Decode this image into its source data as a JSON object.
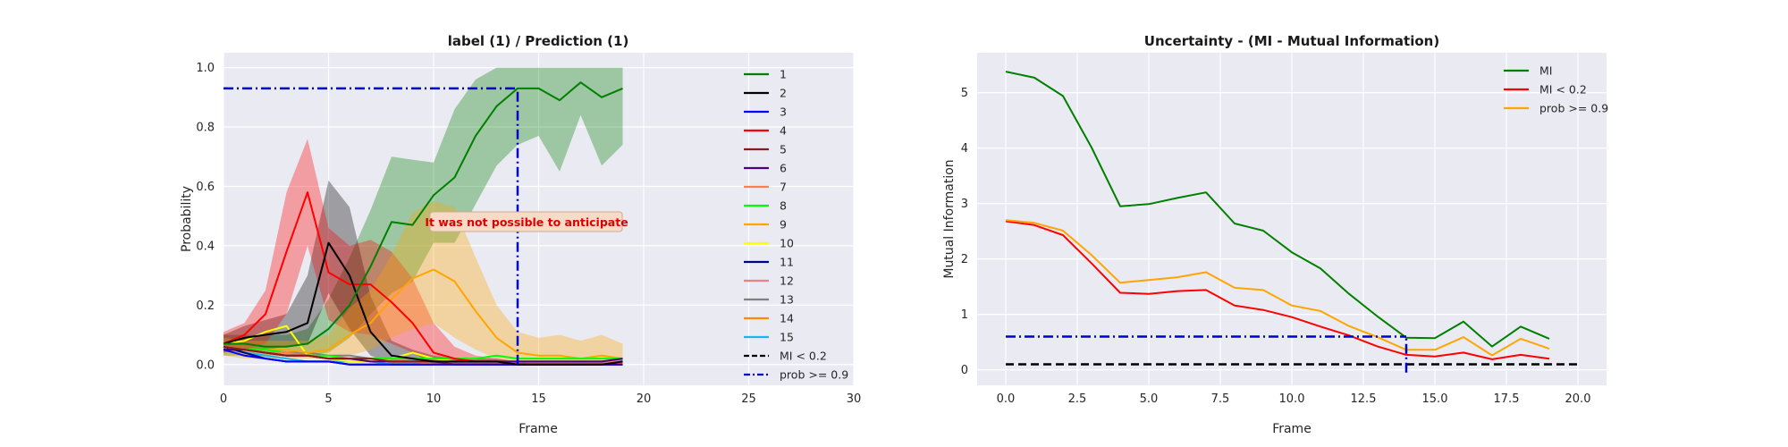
{
  "chart_data": [
    {
      "type": "line",
      "title": "label (1) / Prediction (1)",
      "xlabel": "Frame",
      "ylabel": "Probability",
      "xlim": [
        0,
        30
      ],
      "ylim": [
        -0.07,
        1.05
      ],
      "xticks": [
        0,
        5,
        10,
        15,
        20,
        25,
        30
      ],
      "yticks": [
        0.0,
        0.2,
        0.4,
        0.6,
        0.8,
        1.0
      ],
      "xtick_labels": [
        "0",
        "5",
        "10",
        "15",
        "20",
        "25",
        "30"
      ],
      "ytick_labels": [
        "0.0",
        "0.2",
        "0.4",
        "0.6",
        "0.8",
        "1.0"
      ],
      "grid": true,
      "legend_position": "right",
      "x": [
        0,
        1,
        2,
        3,
        4,
        5,
        6,
        7,
        8,
        9,
        10,
        11,
        12,
        13,
        14,
        15,
        16,
        17,
        18,
        19
      ],
      "series": [
        {
          "name": "1",
          "color": "#008000",
          "values": [
            0.07,
            0.07,
            0.06,
            0.06,
            0.07,
            0.12,
            0.2,
            0.33,
            0.48,
            0.47,
            0.57,
            0.63,
            0.77,
            0.87,
            0.93,
            0.93,
            0.89,
            0.95,
            0.9,
            0.93
          ],
          "band_lower": [
            0.03,
            0.03,
            0.03,
            0.03,
            0.03,
            0.04,
            0.09,
            0.17,
            0.24,
            0.28,
            0.41,
            0.41,
            0.54,
            0.67,
            0.74,
            0.77,
            0.65,
            0.84,
            0.67,
            0.74
          ],
          "band_upper": [
            0.1,
            0.1,
            0.1,
            0.1,
            0.12,
            0.22,
            0.36,
            0.52,
            0.7,
            0.69,
            0.68,
            0.86,
            0.96,
            1.0,
            1.0,
            1.0,
            1.0,
            1.0,
            1.0,
            1.0
          ]
        },
        {
          "name": "2",
          "color": "#000000",
          "values": [
            0.07,
            0.09,
            0.1,
            0.11,
            0.14,
            0.41,
            0.3,
            0.11,
            0.03,
            0.02,
            0.01,
            0.01,
            0.01,
            0.01,
            0.0,
            0.0,
            0.0,
            0.0,
            0.0,
            0.01
          ],
          "band_lower": [
            0.04,
            0.05,
            0.05,
            0.06,
            0.07,
            0.24,
            0.12,
            0.03,
            0.0,
            0.0,
            0.0,
            0.0,
            0.0,
            0.0,
            0.0,
            0.0,
            0.0,
            0.0,
            0.0,
            0.0
          ],
          "band_upper": [
            0.1,
            0.13,
            0.15,
            0.17,
            0.3,
            0.62,
            0.53,
            0.23,
            0.08,
            0.05,
            0.03,
            0.02,
            0.02,
            0.02,
            0.01,
            0.01,
            0.01,
            0.01,
            0.01,
            0.02
          ]
        },
        {
          "name": "3",
          "color": "#0000ff",
          "values": [
            0.05,
            0.03,
            0.02,
            0.01,
            0.01,
            0.01,
            0.0,
            0.0,
            0.0,
            0.0,
            0.0,
            0.0,
            0.0,
            0.0,
            0.0,
            0.0,
            0.0,
            0.0,
            0.0,
            0.0
          ]
        },
        {
          "name": "4",
          "color": "#ff0000",
          "values": [
            0.07,
            0.1,
            0.17,
            0.38,
            0.58,
            0.31,
            0.27,
            0.27,
            0.21,
            0.14,
            0.04,
            0.02,
            0.01,
            0.01,
            0.0,
            0.0,
            0.0,
            0.0,
            0.0,
            0.0
          ],
          "band_lower": [
            0.04,
            0.05,
            0.07,
            0.17,
            0.4,
            0.15,
            0.11,
            0.1,
            0.07,
            0.04,
            0.0,
            0.0,
            0.0,
            0.0,
            0.0,
            0.0,
            0.0,
            0.0,
            0.0,
            0.0
          ],
          "band_upper": [
            0.11,
            0.14,
            0.25,
            0.58,
            0.76,
            0.46,
            0.4,
            0.42,
            0.38,
            0.29,
            0.14,
            0.06,
            0.03,
            0.02,
            0.01,
            0.01,
            0.01,
            0.01,
            0.01,
            0.01
          ]
        },
        {
          "name": "5",
          "color": "#8b1a1a",
          "values": [
            0.06,
            0.05,
            0.04,
            0.03,
            0.03,
            0.02,
            0.02,
            0.02,
            0.01,
            0.01,
            0.01,
            0.0,
            0.0,
            0.0,
            0.0,
            0.0,
            0.0,
            0.0,
            0.0,
            0.0
          ]
        },
        {
          "name": "6",
          "color": "#4b0082",
          "values": [
            0.05,
            0.05,
            0.04,
            0.03,
            0.03,
            0.02,
            0.02,
            0.01,
            0.01,
            0.01,
            0.01,
            0.01,
            0.01,
            0.01,
            0.01,
            0.01,
            0.01,
            0.01,
            0.01,
            0.02
          ]
        },
        {
          "name": "7",
          "color": "#ff7f50",
          "values": [
            0.06,
            0.05,
            0.04,
            0.04,
            0.03,
            0.02,
            0.02,
            0.01,
            0.01,
            0.01,
            0.0,
            0.0,
            0.0,
            0.0,
            0.0,
            0.0,
            0.0,
            0.0,
            0.0,
            0.0
          ]
        },
        {
          "name": "8",
          "color": "#00ff00",
          "values": [
            0.06,
            0.05,
            0.05,
            0.04,
            0.03,
            0.03,
            0.02,
            0.02,
            0.02,
            0.02,
            0.02,
            0.02,
            0.02,
            0.03,
            0.02,
            0.02,
            0.02,
            0.02,
            0.02,
            0.02
          ]
        },
        {
          "name": "9",
          "color": "#ffa500",
          "values": [
            0.06,
            0.05,
            0.05,
            0.05,
            0.04,
            0.05,
            0.1,
            0.14,
            0.22,
            0.29,
            0.32,
            0.28,
            0.18,
            0.09,
            0.04,
            0.03,
            0.03,
            0.02,
            0.03,
            0.02
          ],
          "band_lower": [
            0.03,
            0.02,
            0.02,
            0.02,
            0.02,
            0.02,
            0.03,
            0.05,
            0.09,
            0.12,
            0.14,
            0.09,
            0.05,
            0.02,
            0.01,
            0.0,
            0.0,
            0.0,
            0.0,
            0.0
          ],
          "band_upper": [
            0.09,
            0.08,
            0.08,
            0.08,
            0.08,
            0.1,
            0.19,
            0.25,
            0.37,
            0.51,
            0.55,
            0.53,
            0.36,
            0.2,
            0.11,
            0.09,
            0.1,
            0.08,
            0.1,
            0.07
          ]
        },
        {
          "name": "10",
          "color": "#ffff00",
          "values": [
            0.07,
            0.08,
            0.11,
            0.13,
            0.03,
            0.02,
            0.01,
            0.01,
            0.02,
            0.04,
            0.02,
            0.01,
            0.01,
            0.01,
            0.0,
            0.0,
            0.0,
            0.0,
            0.0,
            0.0
          ]
        },
        {
          "name": "11",
          "color": "#00008b",
          "values": [
            0.06,
            0.04,
            0.02,
            0.01,
            0.01,
            0.01,
            0.0,
            0.0,
            0.0,
            0.0,
            0.0,
            0.0,
            0.0,
            0.0,
            0.0,
            0.0,
            0.0,
            0.0,
            0.0,
            0.0
          ]
        },
        {
          "name": "12",
          "color": "#f08080",
          "values": [
            0.06,
            0.05,
            0.04,
            0.03,
            0.03,
            0.02,
            0.02,
            0.02,
            0.02,
            0.01,
            0.01,
            0.01,
            0.01,
            0.01,
            0.01,
            0.01,
            0.01,
            0.01,
            0.01,
            0.01
          ]
        },
        {
          "name": "13",
          "color": "#808080",
          "values": [
            0.06,
            0.05,
            0.05,
            0.04,
            0.04,
            0.03,
            0.03,
            0.02,
            0.02,
            0.02,
            0.01,
            0.01,
            0.01,
            0.01,
            0.01,
            0.01,
            0.01,
            0.01,
            0.01,
            0.01
          ]
        },
        {
          "name": "14",
          "color": "#ff8c00",
          "values": [
            0.06,
            0.05,
            0.04,
            0.03,
            0.03,
            0.02,
            0.02,
            0.02,
            0.01,
            0.01,
            0.01,
            0.01,
            0.01,
            0.01,
            0.01,
            0.01,
            0.01,
            0.01,
            0.01,
            0.01
          ]
        },
        {
          "name": "15",
          "color": "#1eb4f0",
          "values": [
            0.06,
            0.04,
            0.03,
            0.02,
            0.01,
            0.01,
            0.01,
            0.01,
            0.0,
            0.0,
            0.0,
            0.0,
            0.0,
            0.0,
            0.0,
            0.0,
            0.0,
            0.0,
            0.0,
            0.0
          ]
        }
      ],
      "legend": [
        {
          "label": "1",
          "color": "#008000",
          "dash": "solid"
        },
        {
          "label": "2",
          "color": "#000000",
          "dash": "solid"
        },
        {
          "label": "3",
          "color": "#0000ff",
          "dash": "solid"
        },
        {
          "label": "4",
          "color": "#ff0000",
          "dash": "solid"
        },
        {
          "label": "5",
          "color": "#8b1a1a",
          "dash": "solid"
        },
        {
          "label": "6",
          "color": "#4b0082",
          "dash": "solid"
        },
        {
          "label": "7",
          "color": "#ff7f50",
          "dash": "solid"
        },
        {
          "label": "8",
          "color": "#00ff00",
          "dash": "solid"
        },
        {
          "label": "9",
          "color": "#ffa500",
          "dash": "solid"
        },
        {
          "label": "10",
          "color": "#ffff00",
          "dash": "solid"
        },
        {
          "label": "11",
          "color": "#00008b",
          "dash": "solid"
        },
        {
          "label": "12",
          "color": "#f08080",
          "dash": "solid"
        },
        {
          "label": "13",
          "color": "#808080",
          "dash": "solid"
        },
        {
          "label": "14",
          "color": "#ff8c00",
          "dash": "solid"
        },
        {
          "label": "15",
          "color": "#1eb4f0",
          "dash": "solid"
        },
        {
          "label": "MI < 0.2",
          "color": "#000000",
          "dash": "dashed"
        },
        {
          "label": "prob >= 0.9",
          "color": "#0000cd",
          "dash": "dashdot"
        }
      ],
      "reference_lines": [
        {
          "label": "prob >= 0.9",
          "kind": "hline",
          "y": 0.93,
          "x_from": 0,
          "x_to": 14,
          "color": "#0000cd",
          "dash": "dashdot"
        },
        {
          "label": "prob >= 0.9",
          "kind": "vline",
          "x": 14,
          "y_from": 0.0,
          "y_to": 0.93,
          "color": "#0000cd",
          "dash": "dashdot"
        }
      ],
      "annotation": {
        "text": "It was not possible to anticipate",
        "x": 10,
        "y": 0.51
      }
    },
    {
      "type": "line",
      "title": "Uncertainty - (MI - Mutual Information)",
      "xlabel": "Frame",
      "ylabel": "Mutual Information",
      "xlim": [
        -1,
        21
      ],
      "ylim": [
        -0.28,
        5.72
      ],
      "xticks": [
        0.0,
        2.5,
        5.0,
        7.5,
        10.0,
        12.5,
        15.0,
        17.5,
        20.0
      ],
      "yticks": [
        0,
        1,
        2,
        3,
        4,
        5
      ],
      "xtick_labels": [
        "0.0",
        "2.5",
        "5.0",
        "7.5",
        "10.0",
        "12.5",
        "15.0",
        "17.5",
        "20.0"
      ],
      "ytick_labels": [
        "0",
        "1",
        "2",
        "3",
        "4",
        "5"
      ],
      "grid": true,
      "legend_position": "top-right",
      "x": [
        0,
        1,
        2,
        3,
        4,
        5,
        6,
        7,
        8,
        9,
        10,
        11,
        12,
        13,
        14,
        15,
        16,
        17,
        18,
        19
      ],
      "series": [
        {
          "name": "MI",
          "color": "#008000",
          "values": [
            5.38,
            5.27,
            4.94,
            4.01,
            2.95,
            2.99,
            3.1,
            3.2,
            2.64,
            2.51,
            2.12,
            1.83,
            1.37,
            0.96,
            0.58,
            0.57,
            0.87,
            0.42,
            0.78,
            0.56
          ]
        },
        {
          "name": "MI < 0.2",
          "color": "#ff0000",
          "values": [
            2.68,
            2.61,
            2.43,
            1.92,
            1.39,
            1.37,
            1.42,
            1.44,
            1.16,
            1.08,
            0.95,
            0.78,
            0.62,
            0.42,
            0.27,
            0.24,
            0.31,
            0.19,
            0.27,
            0.2
          ]
        },
        {
          "name": "prob >= 0.9",
          "color": "#ffa500",
          "values": [
            2.7,
            2.65,
            2.51,
            2.07,
            1.57,
            1.62,
            1.67,
            1.76,
            1.48,
            1.44,
            1.16,
            1.06,
            0.79,
            0.59,
            0.36,
            0.36,
            0.59,
            0.26,
            0.56,
            0.38
          ]
        }
      ],
      "legend": [
        {
          "label": "MI",
          "color": "#008000",
          "dash": "solid"
        },
        {
          "label": "MI < 0.2",
          "color": "#ff0000",
          "dash": "solid"
        },
        {
          "label": "prob >= 0.9",
          "color": "#ffa500",
          "dash": "solid"
        }
      ],
      "reference_lines": [
        {
          "kind": "hline",
          "y": 0.1,
          "x_from": 0,
          "x_to": 20,
          "color": "#000000",
          "dash": "dashed"
        },
        {
          "kind": "hline",
          "y": 0.6,
          "x_from": 0,
          "x_to": 14,
          "color": "#0000cd",
          "dash": "dashdot"
        },
        {
          "kind": "vline",
          "x": 14,
          "y_from": -0.05,
          "y_to": 0.6,
          "color": "#0000cd",
          "dash": "dashdot"
        }
      ]
    }
  ]
}
